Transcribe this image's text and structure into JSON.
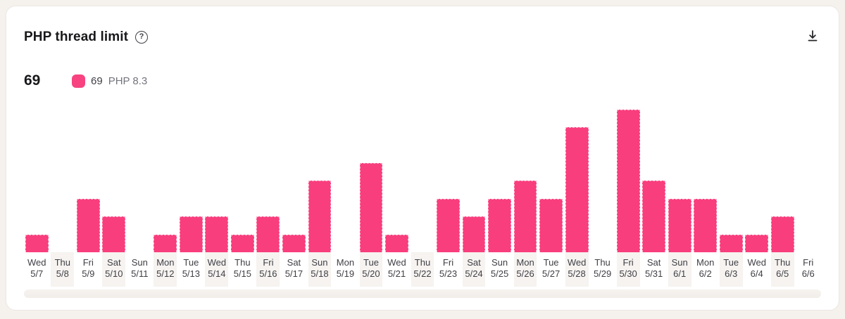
{
  "header": {
    "title": "PHP thread limit"
  },
  "icons": {
    "help_glyph": "?"
  },
  "stats": {
    "value": "69"
  },
  "legend": {
    "value": "69",
    "label": "PHP 8.3",
    "swatch_color": "#f7437f"
  },
  "chart_data": {
    "type": "bar",
    "title": "PHP thread limit",
    "series_name": "PHP 8.3",
    "displayed_current_value": 69,
    "categories": [
      "Wed 5/7",
      "Thu 5/8",
      "Fri 5/9",
      "Sat 5/10",
      "Sun 5/11",
      "Mon 5/12",
      "Tue 5/13",
      "Wed 5/14",
      "Thu 5/15",
      "Fri 5/16",
      "Sat 5/17",
      "Sun 5/18",
      "Mon 5/19",
      "Tue 5/20",
      "Wed 5/21",
      "Thu 5/22",
      "Fri 5/23",
      "Sat 5/24",
      "Sun 5/25",
      "Mon 5/26",
      "Tue 5/27",
      "Wed 5/28",
      "Thu 5/29",
      "Fri 5/30",
      "Sat 5/31",
      "Sun 6/1",
      "Mon 6/2",
      "Tue 6/3",
      "Wed 6/4",
      "Thu 6/5",
      "Fri 6/6"
    ],
    "day_names": [
      "Wed",
      "Thu",
      "Fri",
      "Sat",
      "Sun",
      "Mon",
      "Tue",
      "Wed",
      "Thu",
      "Fri",
      "Sat",
      "Sun",
      "Mon",
      "Tue",
      "Wed",
      "Thu",
      "Fri",
      "Sat",
      "Sun",
      "Mon",
      "Tue",
      "Wed",
      "Thu",
      "Fri",
      "Sat",
      "Sun",
      "Mon",
      "Tue",
      "Wed",
      "Thu",
      "Fri"
    ],
    "dates": [
      "5/7",
      "5/8",
      "5/9",
      "5/10",
      "5/11",
      "5/12",
      "5/13",
      "5/14",
      "5/15",
      "5/16",
      "5/17",
      "5/18",
      "5/19",
      "5/20",
      "5/21",
      "5/22",
      "5/23",
      "5/24",
      "5/25",
      "5/26",
      "5/27",
      "5/28",
      "5/29",
      "5/30",
      "5/31",
      "6/1",
      "6/2",
      "6/3",
      "6/4",
      "6/5",
      "6/6"
    ],
    "values": [
      1,
      0,
      3,
      2,
      0,
      1,
      2,
      2,
      1,
      2,
      1,
      4,
      0,
      5,
      1,
      0,
      3,
      2,
      3,
      4,
      3,
      7,
      0,
      8,
      4,
      3,
      3,
      1,
      1,
      2,
      0
    ],
    "value_units": "relative (no y-axis labels shown)",
    "ylim": [
      0,
      8
    ],
    "xlabel": "",
    "ylabel": "",
    "grid": false,
    "legend_position": "top-left",
    "x_axis_two_line_labels": true,
    "bar_color": "#f93e7d",
    "striped_label_background": "#f6f3f0",
    "striped_label_indices": [
      1,
      3,
      5,
      7,
      9,
      11,
      13,
      15,
      17,
      19,
      21,
      23,
      25,
      27,
      29
    ]
  }
}
